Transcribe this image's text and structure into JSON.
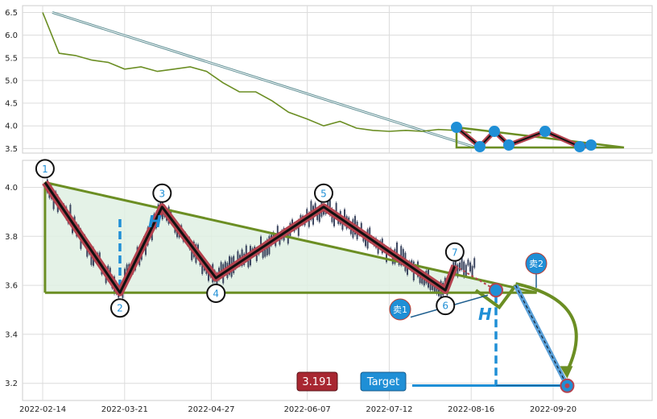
{
  "chart_data": [
    {
      "type": "line",
      "panel": "overview",
      "ylim": [
        3.4,
        6.65
      ],
      "yticks": [
        "3.5",
        "4.0",
        "4.5",
        "5.0",
        "5.5",
        "6.0",
        "6.5"
      ],
      "grid": true,
      "series": [
        {
          "color": "#6b8e23",
          "x": [
            "2022-02-14",
            "2022-02-21",
            "2022-02-28",
            "2022-03-07",
            "2022-03-14",
            "2022-03-21",
            "2022-03-28",
            "2022-04-04",
            "2022-04-11",
            "2022-04-18",
            "2022-04-25",
            "2022-05-02",
            "2022-05-09",
            "2022-05-16",
            "2022-05-23",
            "2022-05-30",
            "2022-06-07",
            "2022-06-14",
            "2022-06-21",
            "2022-06-28",
            "2022-07-05",
            "2022-07-12",
            "2022-07-19",
            "2022-07-26",
            "2022-08-02",
            "2022-08-09",
            "2022-08-16"
          ],
          "values": [
            6.5,
            5.6,
            5.55,
            5.45,
            5.4,
            5.25,
            5.3,
            5.2,
            5.25,
            5.3,
            5.2,
            4.95,
            4.75,
            4.75,
            4.55,
            4.3,
            4.15,
            4.0,
            4.1,
            3.95,
            3.9,
            3.88,
            3.9,
            3.88,
            3.92,
            3.9,
            3.85
          ]
        }
      ]
    },
    {
      "type": "pattern",
      "panel": "main",
      "ylim": [
        3.13,
        4.11
      ],
      "yticks": [
        "3.2",
        "3.4",
        "3.6",
        "3.8",
        "4.0"
      ],
      "xticks": [
        "2022-02-14",
        "2022-03-21",
        "2022-04-27",
        "2022-06-07",
        "2022-07-12",
        "2022-08-16",
        "2022-09-20"
      ],
      "grid": true,
      "pivots": [
        {
          "label": "1",
          "x": "2022-02-15",
          "y": 4.02
        },
        {
          "label": "2",
          "x": "2022-03-19",
          "y": 3.57
        },
        {
          "label": "3",
          "x": "2022-04-06",
          "y": 3.92
        },
        {
          "label": "4",
          "x": "2022-04-29",
          "y": 3.63
        },
        {
          "label": "5",
          "x": "2022-06-14",
          "y": 3.92
        },
        {
          "label": "6",
          "x": "2022-08-05",
          "y": 3.58
        },
        {
          "label": "7",
          "x": "2022-08-09",
          "y": 3.68
        }
      ],
      "upper_trendline": [
        {
          "x": "2022-02-15",
          "y": 4.02
        },
        {
          "x": "2022-09-13",
          "y": 3.57
        }
      ],
      "lower_trendline": [
        {
          "x": "2022-02-15",
          "y": 3.57
        },
        {
          "x": "2022-09-13",
          "y": 3.57
        }
      ],
      "projection": [
        {
          "x": "2022-08-18",
          "y": 3.58
        },
        {
          "x": "2022-08-28",
          "y": 3.51
        },
        {
          "x": "2022-09-04",
          "y": 3.6
        },
        {
          "x": "2022-09-26",
          "y": 3.19
        }
      ],
      "height_label": "H",
      "sell1_label": "卖1",
      "sell2_label": "卖2",
      "target_label": "Target",
      "target_value": "3.191",
      "colors": {
        "pattern_line": "#b5434f",
        "trend": "#6b8e23",
        "fill": "#dff0e3",
        "accent": "#1f8fd6",
        "price_box": "#a82731",
        "candle": "#3c4660"
      }
    }
  ]
}
